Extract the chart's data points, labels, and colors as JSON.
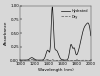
{
  "title": "",
  "xlabel": "Wavelength (nm)",
  "ylabel": "Absorbance",
  "xlim": [
    1000,
    2000
  ],
  "ylim": [
    0,
    1.0
  ],
  "ytick_vals": [
    0.0,
    0.25,
    0.5,
    0.75,
    1.0
  ],
  "ytick_labels": [
    "0.000",
    "0.25",
    "0.50",
    "0.75",
    "1.00"
  ],
  "xtick_vals": [
    1000,
    1200,
    1400,
    1600,
    1800,
    2000
  ],
  "legend_dry": "Dry",
  "legend_hydrated": "Hydrated",
  "bg_color": "#d8d8d8",
  "line_color_dry": "#555555",
  "line_color_hydrated": "#111111"
}
